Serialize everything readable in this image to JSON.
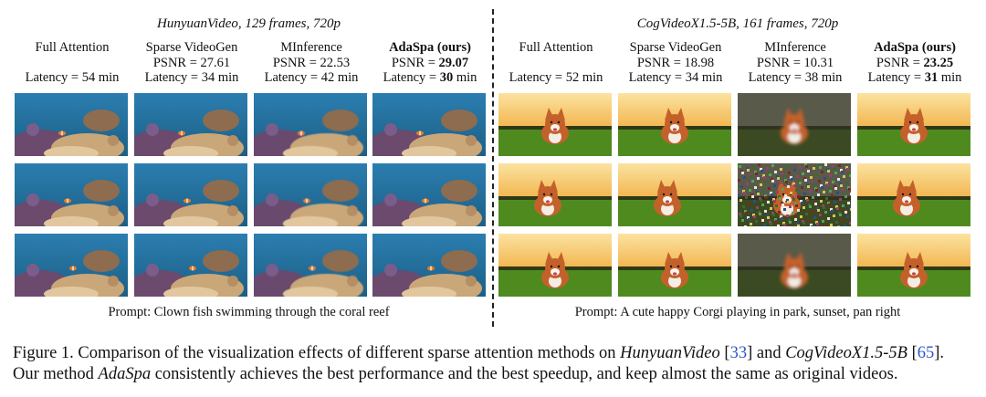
{
  "left_panel": {
    "title": "HunyuanVideo, 129 frames, 720p",
    "methods": [
      {
        "name": "Full Attention",
        "psnr_label": "",
        "latency_label": "Latency = 54 min"
      },
      {
        "name": "Sparse VideoGen",
        "psnr_label": "PSNR = 27.61",
        "latency_label": "Latency = 34 min"
      },
      {
        "name": "MInference",
        "psnr_label": "PSNR = 22.53",
        "latency_label": "Latency = 42 min"
      },
      {
        "name": "AdaSpa (ours)",
        "psnr_prefix": "PSNR = ",
        "psnr_value": "29.07",
        "latency_prefix": "Latency = ",
        "latency_value": "30",
        "latency_suffix": " min"
      }
    ],
    "prompt": "Prompt: Clown fish swimming through the coral reef"
  },
  "right_panel": {
    "title": "CogVideoX1.5-5B, 161 frames, 720p",
    "methods": [
      {
        "name": "Full Attention",
        "psnr_label": "",
        "latency_label": "Latency = 52 min"
      },
      {
        "name": "Sparse VideoGen",
        "psnr_label": "PSNR = 18.98",
        "latency_label": "Latency = 34 min"
      },
      {
        "name": "MInference",
        "psnr_label": "PSNR = 10.31",
        "latency_label": "Latency = 38 min"
      },
      {
        "name": "AdaSpa (ours)",
        "psnr_prefix": "PSNR = ",
        "psnr_value": "23.25",
        "latency_prefix": "Latency = ",
        "latency_value": "31",
        "latency_suffix": " min"
      }
    ],
    "prompt": "Prompt: A cute happy Corgi playing in park, sunset, pan right"
  },
  "caption": {
    "line1_a": "Figure 1. Comparison of the visualization effects of different sparse attention methods on ",
    "line1_b": "HunyuanVideo",
    "line1_c": " [",
    "line1_d": "33",
    "line1_e": "] and ",
    "line1_f": "CogVideoX1.5-5B",
    "line1_g": " [",
    "line1_h": "65",
    "line1_i": "].",
    "line2_a": "Our method ",
    "line2_b": "AdaSpa",
    "line2_c": " consistently achieves the best performance and the best speedup, and keep almost the same as original videos."
  },
  "colors": {
    "citation": "#2a55c9",
    "reef_water": "#1c5f86",
    "coral": "#c9a779",
    "sunset_sky": "#f2b24a",
    "grass": "#4f8a1f",
    "corgi": "#c4612a"
  }
}
